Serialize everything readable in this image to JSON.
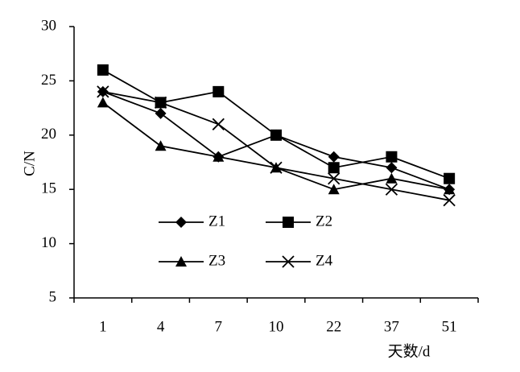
{
  "chart_data": {
    "type": "line",
    "ylabel": "C/N",
    "xlabel": "天数/d",
    "categories": [
      "1",
      "4",
      "7",
      "10",
      "22",
      "37",
      "51"
    ],
    "ylim": [
      5,
      30
    ],
    "yticks": [
      5,
      10,
      15,
      20,
      25,
      30
    ],
    "series": [
      {
        "name": "Z1",
        "color": "#000000",
        "marker": "diamond",
        "values": [
          24,
          22,
          18,
          20,
          18,
          17,
          15
        ]
      },
      {
        "name": "Z2",
        "color": "#000000",
        "marker": "square",
        "values": [
          26,
          23,
          24,
          20,
          17,
          18,
          16
        ]
      },
      {
        "name": "Z3",
        "color": "#000000",
        "marker": "triangle",
        "values": [
          23,
          19,
          18,
          17,
          15,
          16,
          15
        ]
      },
      {
        "name": "Z4",
        "color": "#000000",
        "marker": "x",
        "values": [
          24,
          23,
          21,
          17,
          16,
          15,
          14
        ]
      }
    ]
  }
}
